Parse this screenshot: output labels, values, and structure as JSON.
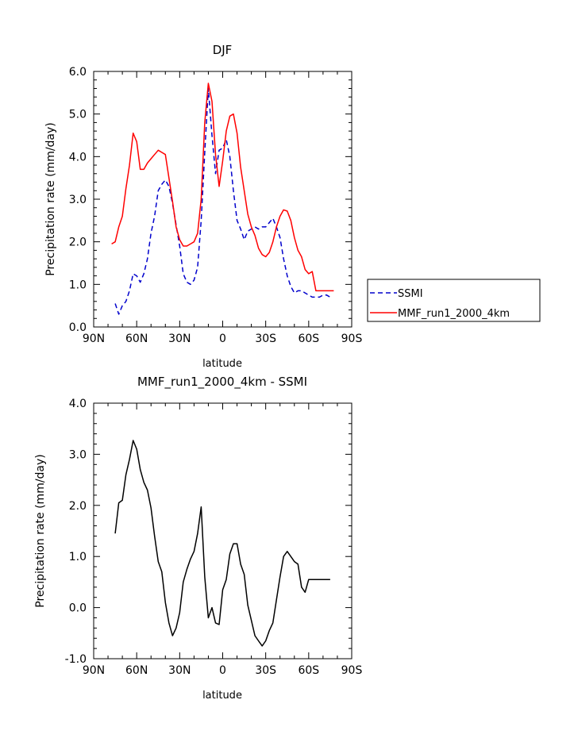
{
  "chart_data": [
    {
      "type": "line",
      "title": "DJF",
      "xlabel": "latitude",
      "ylabel": "Precipitation rate (mm/day)",
      "xlim": [
        90,
        -90
      ],
      "ylim": [
        0,
        6
      ],
      "x_ticks": [
        90,
        60,
        30,
        0,
        -30,
        -60,
        -90
      ],
      "x_tick_labels": [
        "90N",
        "60N",
        "30N",
        "0",
        "30S",
        "60S",
        "90S"
      ],
      "y_ticks": [
        0,
        1,
        2,
        3,
        4,
        5,
        6
      ],
      "y_tick_labels": [
        "0.0",
        "1.0",
        "2.0",
        "3.0",
        "4.0",
        "5.0",
        "6.0"
      ],
      "legend": "right",
      "series": [
        {
          "name": "SSMI",
          "color": "#0000cc",
          "dash": "dashed",
          "x": [
            75,
            72.5,
            70,
            67.5,
            65,
            62.5,
            60,
            57.5,
            55,
            52.5,
            50,
            47.5,
            45,
            42.5,
            40,
            37.5,
            35,
            32.5,
            30,
            27.5,
            25,
            22.5,
            20,
            17.5,
            15,
            12.5,
            10,
            7.5,
            5,
            2.5,
            0,
            -2.5,
            -5,
            -7.5,
            -10,
            -12.5,
            -15,
            -17.5,
            -20,
            -22.5,
            -25,
            -27.5,
            -30,
            -32.5,
            -35,
            -37.5,
            -40,
            -42.5,
            -45,
            -47.5,
            -50,
            -52.5,
            -55,
            -57.5,
            -60,
            -62.5,
            -65,
            -67.5,
            -70,
            -72.5,
            -75
          ],
          "values": [
            0.55,
            0.3,
            0.5,
            0.6,
            0.85,
            1.25,
            1.2,
            1.05,
            1.25,
            1.6,
            2.2,
            2.6,
            3.2,
            3.35,
            3.45,
            3.3,
            2.9,
            2.4,
            1.9,
            1.25,
            1.05,
            1.0,
            1.1,
            1.4,
            2.5,
            4.1,
            5.6,
            4.5,
            3.6,
            4.15,
            4.2,
            4.4,
            4.0,
            3.2,
            2.5,
            2.3,
            2.05,
            2.25,
            2.3,
            2.35,
            2.3,
            2.35,
            2.35,
            2.45,
            2.55,
            2.35,
            2.1,
            1.6,
            1.2,
            0.95,
            0.8,
            0.85,
            0.85,
            0.8,
            0.75,
            0.7,
            0.7,
            0.7,
            0.75,
            0.75,
            0.7
          ]
        },
        {
          "name": "MMF_run1_2000_4km",
          "color": "#ff0000",
          "dash": "solid",
          "x": [
            77.5,
            75,
            72.5,
            70,
            67.5,
            65,
            62.5,
            60,
            57.5,
            55,
            52.5,
            50,
            47.5,
            45,
            42.5,
            40,
            37.5,
            35,
            32.5,
            30,
            27.5,
            25,
            22.5,
            20,
            17.5,
            15,
            12.5,
            10,
            7.5,
            5,
            2.5,
            0,
            -2.5,
            -5,
            -7.5,
            -10,
            -12.5,
            -15,
            -17.5,
            -20,
            -22.5,
            -25,
            -27.5,
            -30,
            -32.5,
            -35,
            -37.5,
            -40,
            -42.5,
            -45,
            -47.5,
            -50,
            -52.5,
            -55,
            -57.5,
            -60,
            -62.5,
            -65,
            -67.5,
            -70,
            -72.5,
            -75,
            -77.5
          ],
          "values": [
            1.95,
            2.0,
            2.35,
            2.6,
            3.25,
            3.8,
            4.55,
            4.35,
            3.7,
            3.7,
            3.85,
            3.95,
            4.05,
            4.15,
            4.1,
            4.05,
            3.5,
            2.95,
            2.35,
            2.05,
            1.9,
            1.9,
            1.95,
            2.0,
            2.2,
            3.0,
            4.8,
            5.72,
            5.3,
            4.05,
            3.3,
            3.9,
            4.6,
            4.95,
            5.0,
            4.55,
            3.75,
            3.2,
            2.65,
            2.35,
            2.15,
            1.85,
            1.7,
            1.65,
            1.75,
            2.0,
            2.35,
            2.6,
            2.75,
            2.72,
            2.5,
            2.1,
            1.8,
            1.65,
            1.35,
            1.25,
            1.3,
            0.85,
            0.85,
            0.85,
            0.85,
            0.85,
            0.85
          ]
        }
      ]
    },
    {
      "type": "line",
      "title": "MMF_run1_2000_4km - SSMI",
      "xlabel": "latitude",
      "ylabel": "Precipitation rate (mm/day)",
      "xlim": [
        90,
        -90
      ],
      "ylim": [
        -1,
        4
      ],
      "x_ticks": [
        90,
        60,
        30,
        0,
        -30,
        -60,
        -90
      ],
      "x_tick_labels": [
        "90N",
        "60N",
        "30N",
        "0",
        "30S",
        "60S",
        "90S"
      ],
      "y_ticks": [
        -1,
        0,
        1,
        2,
        3,
        4
      ],
      "y_tick_labels": [
        "-1.0",
        "0.0",
        "1.0",
        "2.0",
        "3.0",
        "4.0"
      ],
      "series": [
        {
          "name": "MMF_run1_2000_4km - SSMI",
          "color": "#000000",
          "dash": "solid",
          "x": [
            75,
            72.5,
            70,
            67.5,
            65,
            62.5,
            60,
            57.5,
            55,
            52.5,
            50,
            47.5,
            45,
            42.5,
            40,
            37.5,
            35,
            32.5,
            30,
            27.5,
            25,
            22.5,
            20,
            17.5,
            15,
            12.5,
            10,
            7.5,
            5,
            2.5,
            0,
            -2.5,
            -5,
            -7.5,
            -10,
            -12.5,
            -15,
            -17.5,
            -20,
            -22.5,
            -25,
            -27.5,
            -30,
            -32.5,
            -35,
            -37.5,
            -40,
            -42.5,
            -45,
            -47.5,
            -50,
            -52.5,
            -55,
            -57.5,
            -60,
            -62.5,
            -65,
            -67.5,
            -70,
            -72.5,
            -75
          ],
          "values": [
            1.45,
            2.05,
            2.1,
            2.6,
            2.9,
            3.27,
            3.1,
            2.7,
            2.45,
            2.3,
            1.95,
            1.4,
            0.9,
            0.7,
            0.1,
            -0.3,
            -0.55,
            -0.4,
            -0.1,
            0.5,
            0.75,
            0.95,
            1.1,
            1.45,
            1.97,
            0.6,
            -0.2,
            0.0,
            -0.3,
            -0.33,
            0.35,
            0.55,
            1.05,
            1.25,
            1.25,
            0.85,
            0.65,
            0.05,
            -0.25,
            -0.55,
            -0.65,
            -0.75,
            -0.65,
            -0.45,
            -0.3,
            0.15,
            0.6,
            1.0,
            1.1,
            1.0,
            0.9,
            0.85,
            0.4,
            0.3,
            0.55,
            0.55,
            0.55,
            0.55,
            0.55,
            0.55,
            0.55
          ]
        }
      ]
    }
  ]
}
